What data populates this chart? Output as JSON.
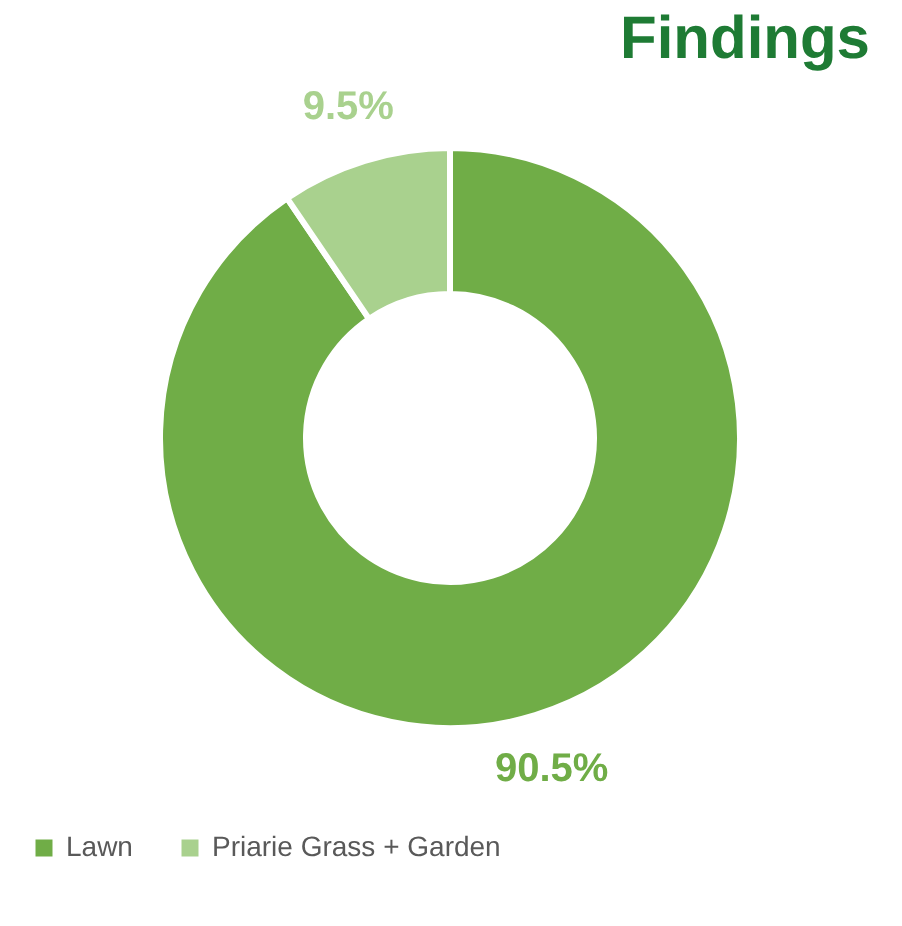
{
  "chart_data": {
    "type": "donut",
    "title": "Findings",
    "categories": [
      "Lawn",
      "Priarie Grass + Garden"
    ],
    "values": [
      90.5,
      9.5
    ],
    "value_labels": [
      "90.5%",
      "9.5%"
    ],
    "colors": [
      "#70ad47",
      "#a9d18e"
    ],
    "legend": "bottom"
  }
}
